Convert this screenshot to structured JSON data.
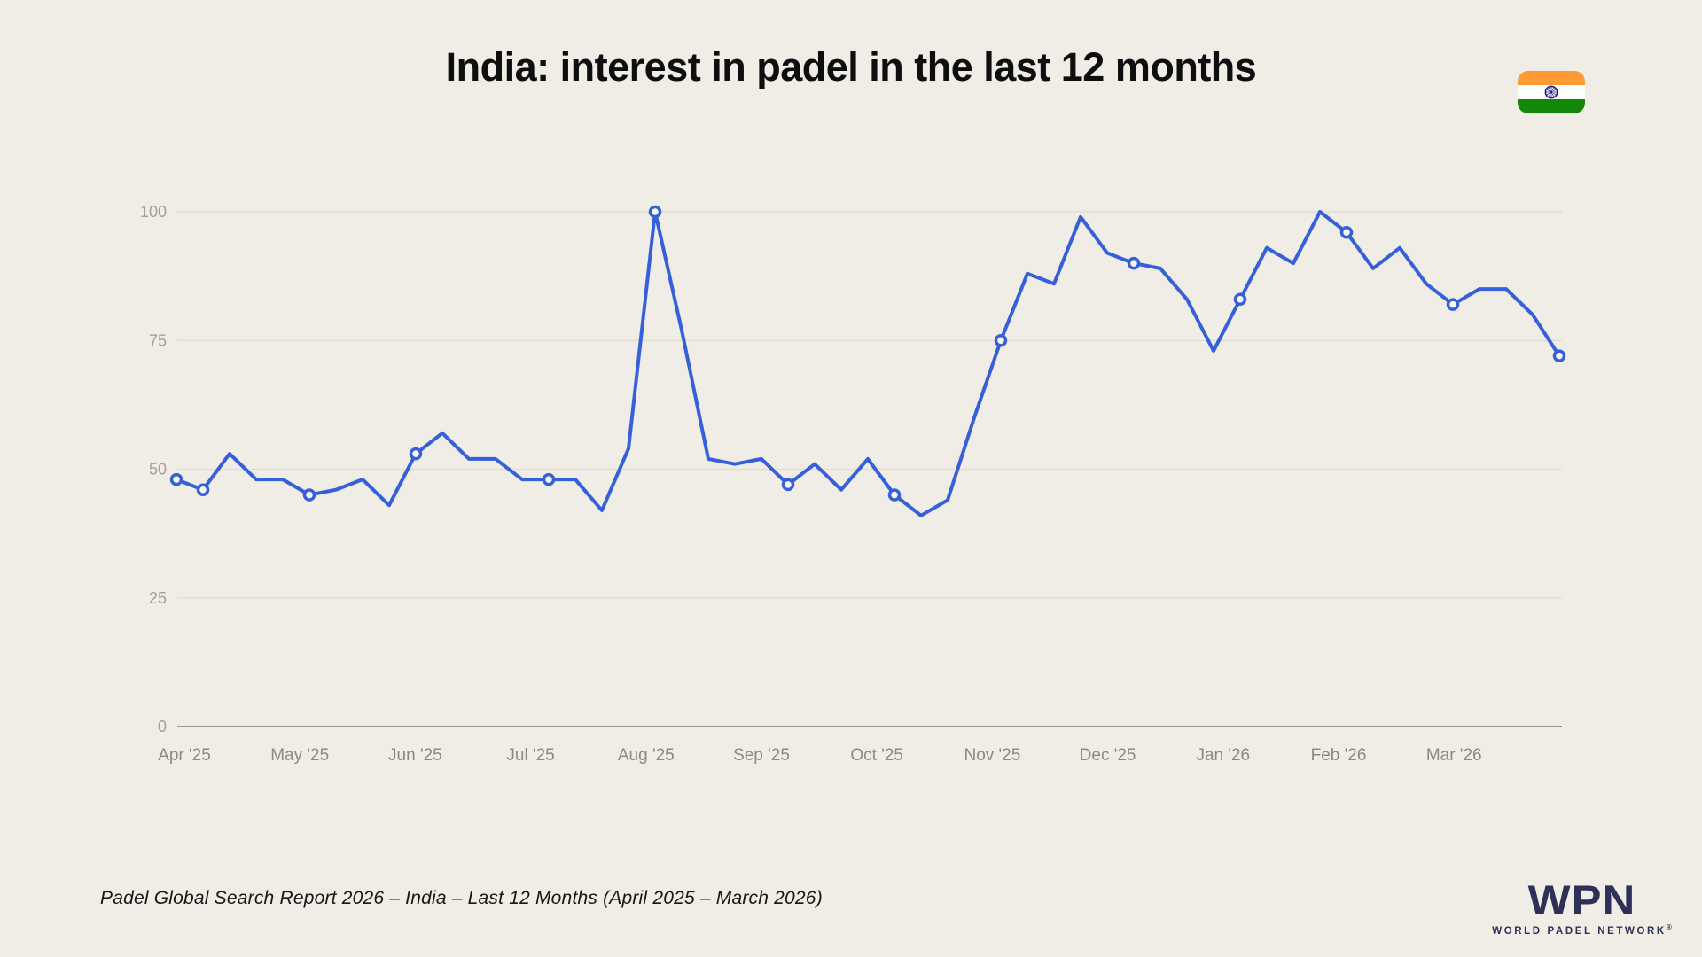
{
  "page": {
    "background_color": "#f0ede6"
  },
  "header": {
    "title": "India: interest in padel in the last 12 months",
    "flag": {
      "name": "india-flag",
      "saffron": "#ff9933",
      "white": "#ffffff",
      "green": "#138808",
      "navy": "#1a1a8c"
    }
  },
  "chart_data": {
    "type": "line",
    "title": "India: interest in padel in the last 12 months",
    "x_unit": "weeks (Apr 2025 - Mar 2026)",
    "categories": [
      "Apr '25",
      "May '25",
      "Jun '25",
      "Jul '25",
      "Aug '25",
      "Sep '25",
      "Oct '25",
      "Nov '25",
      "Dec '25",
      "Jan '26",
      "Feb '26",
      "Mar '26"
    ],
    "values": [
      48,
      46,
      53,
      48,
      48,
      45,
      46,
      48,
      43,
      53,
      57,
      52,
      52,
      48,
      48,
      48,
      42,
      54,
      100,
      77,
      52,
      51,
      52,
      47,
      51,
      46,
      52,
      45,
      41,
      44,
      60,
      75,
      88,
      86,
      99,
      92,
      90,
      89,
      83,
      73,
      83,
      93,
      90,
      100,
      96,
      89,
      93,
      86,
      82,
      85,
      85,
      80,
      72
    ],
    "marker_indices": [
      0,
      1,
      5,
      9,
      14,
      18,
      23,
      27,
      31,
      36,
      40,
      44,
      48,
      52
    ],
    "yticks": [
      0,
      25,
      50,
      75,
      100
    ],
    "ylim": [
      0,
      100
    ],
    "grid": "horizontal",
    "legend": "none",
    "line_color": "#3560d9",
    "marker_fill": "#fbfaf6",
    "grid_color": "#dfdcd4",
    "axis_color": "#9b968c",
    "ytick_label_color": "#a3a099",
    "month_label_color": "#8d897f"
  },
  "footer": {
    "source": "Padel Global Search Report 2026 – India – Last 12 Months (April 2025 – March 2026)",
    "logo": {
      "acronym": "WPN",
      "wordmark": "WORLD PADEL NETWORK",
      "registered": "®",
      "color": "#2e3057"
    }
  }
}
